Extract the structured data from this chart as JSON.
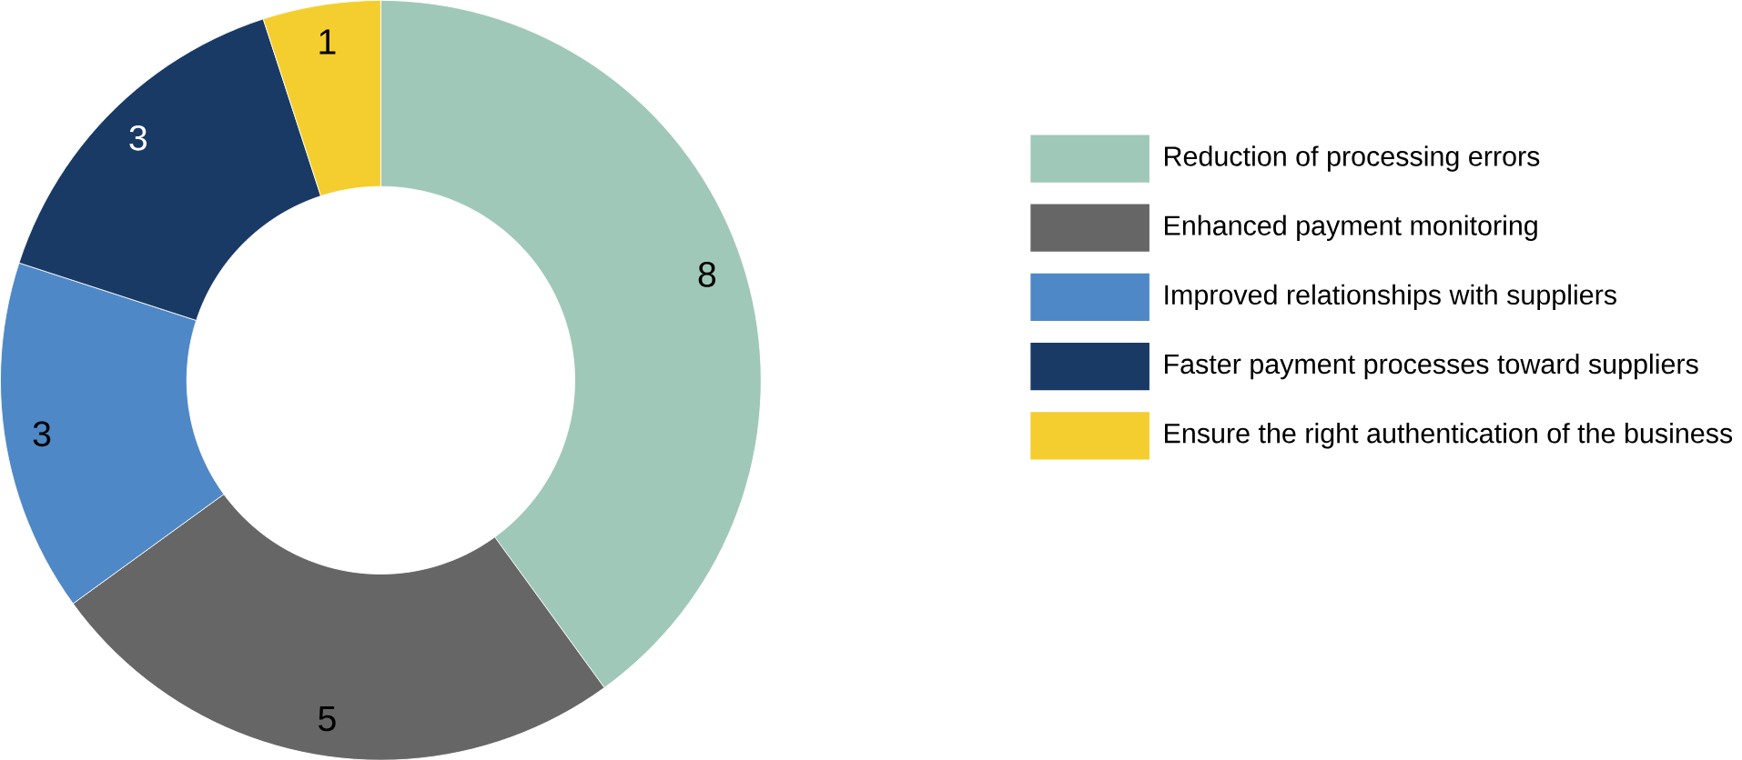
{
  "chart_data": {
    "type": "donut",
    "categories": [
      "Reduction of processing errors",
      "Enhanced payment monitoring",
      "Improved relationships with suppliers",
      "Faster payment processes toward suppliers",
      "Ensure the right authentication of the business"
    ],
    "values": [
      8,
      5,
      3,
      3,
      1
    ],
    "colors": [
      "#a0c8b8",
      "#666666",
      "#4f88c6",
      "#1a3a66",
      "#f4ce2e"
    ],
    "data_labels": true,
    "legend": "right"
  }
}
